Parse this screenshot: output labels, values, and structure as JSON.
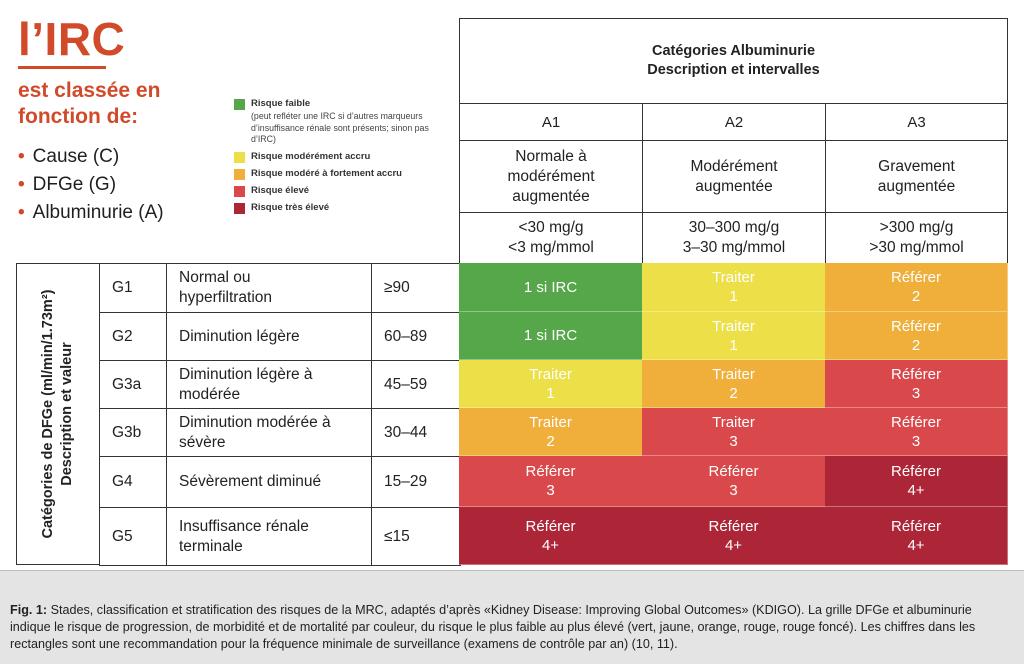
{
  "title": "l’IRC",
  "subtitle": "est classée en fonction de:",
  "criteria": [
    "Cause (C)",
    "DFGe (G)",
    "Albuminurie (A)"
  ],
  "colors": {
    "green": "#56a749",
    "yellow": "#eddf47",
    "orange": "#f0ae3b",
    "red": "#d9484a",
    "darkred": "#ad2638",
    "accent": "#d14a2a"
  },
  "legend": [
    {
      "label": "Risque faible",
      "note": "(peut refléter une IRC si d’autres marqueurs d’insuffisance rénale sont présents; sinon pas d’IRC)",
      "color": "#56a749"
    },
    {
      "label": "Risque modérément accru",
      "note": "",
      "color": "#eddf47"
    },
    {
      "label": "Risque modéré à fortement accru",
      "note": "",
      "color": "#f0ae3b"
    },
    {
      "label": "Risque élevé",
      "note": "",
      "color": "#d9484a"
    },
    {
      "label": "Risque très élevé",
      "note": "",
      "color": "#ad2638"
    }
  ],
  "chart_data": {
    "type": "table",
    "title_line1": "Catégories Albuminurie",
    "title_line2": "Description et intervalles",
    "row_axis_line1": "Catégories de DFGe (ml/min/1.73m²)",
    "row_axis_line2": "Description et valeur",
    "columns": [
      {
        "code": "A1",
        "desc1": "Normale à",
        "desc2": "modérément",
        "desc3": "augmentée",
        "int1": "<30 mg/g",
        "int2": "<3 mg/mmol"
      },
      {
        "code": "A2",
        "desc1": "Modérément",
        "desc2": "augmentée",
        "desc3": "",
        "int1": "30–300 mg/g",
        "int2": "3–30 mg/mmol"
      },
      {
        "code": "A3",
        "desc1": "Gravement",
        "desc2": "augmentée",
        "desc3": "",
        "int1": ">300 mg/g",
        "int2": ">30 mg/mmol"
      }
    ],
    "rows": [
      {
        "code": "G1",
        "desc1": "Normal ou",
        "desc2": "hyperfiltration",
        "value": "≥90",
        "cells": [
          {
            "line1": "1 si IRC",
            "line2": "",
            "risk": "green"
          },
          {
            "line1": "Traiter",
            "line2": "1",
            "risk": "yellow"
          },
          {
            "line1": "Référer",
            "line2": "2",
            "risk": "orange"
          }
        ]
      },
      {
        "code": "G2",
        "desc1": "Diminution légère",
        "desc2": "",
        "value": "60–89",
        "cells": [
          {
            "line1": "1 si IRC",
            "line2": "",
            "risk": "green"
          },
          {
            "line1": "Traiter",
            "line2": "1",
            "risk": "yellow"
          },
          {
            "line1": "Référer",
            "line2": "2",
            "risk": "orange"
          }
        ]
      },
      {
        "code": "G3a",
        "desc1": "Diminution légère à",
        "desc2": "modérée",
        "value": "45–59",
        "cells": [
          {
            "line1": "Traiter",
            "line2": "1",
            "risk": "yellow"
          },
          {
            "line1": "Traiter",
            "line2": "2",
            "risk": "orange"
          },
          {
            "line1": "Référer",
            "line2": "3",
            "risk": "red"
          }
        ]
      },
      {
        "code": "G3b",
        "desc1": "Diminution modérée à",
        "desc2": "sévère",
        "value": "30–44",
        "cells": [
          {
            "line1": "Traiter",
            "line2": "2",
            "risk": "orange"
          },
          {
            "line1": "Traiter",
            "line2": "3",
            "risk": "red"
          },
          {
            "line1": "Référer",
            "line2": "3",
            "risk": "red"
          }
        ]
      },
      {
        "code": "G4",
        "desc1": "Sévèrement diminué",
        "desc2": "",
        "value": "15–29",
        "cells": [
          {
            "line1": "Référer",
            "line2": "3",
            "risk": "red"
          },
          {
            "line1": "Référer",
            "line2": "3",
            "risk": "red"
          },
          {
            "line1": "Référer",
            "line2": "4+",
            "risk": "darkred"
          }
        ]
      },
      {
        "code": "G5",
        "desc1": "Insuffisance rénale",
        "desc2": "terminale",
        "value": "≤15",
        "cells": [
          {
            "line1": "Référer",
            "line2": "4+",
            "risk": "darkred"
          },
          {
            "line1": "Référer",
            "line2": "4+",
            "risk": "darkred"
          },
          {
            "line1": "Référer",
            "line2": "4+",
            "risk": "darkred"
          }
        ]
      }
    ]
  },
  "caption": {
    "label": "Fig. 1:",
    "text": " Stades, classification et stratification des risques de la MRC, adaptés d’après «Kidney Disease: Improving Global Outcomes» (KDIGO). La grille DFGe et albuminurie indique le risque de progression, de morbidité et de mortalité par couleur, du risque le plus faible au plus élevé (vert, jaune, orange, rouge, rouge foncé). Les chiffres dans les rectangles sont une recommandation pour la fréquence minimale de surveillance (examens de contrôle par an) (10, 11)."
  }
}
